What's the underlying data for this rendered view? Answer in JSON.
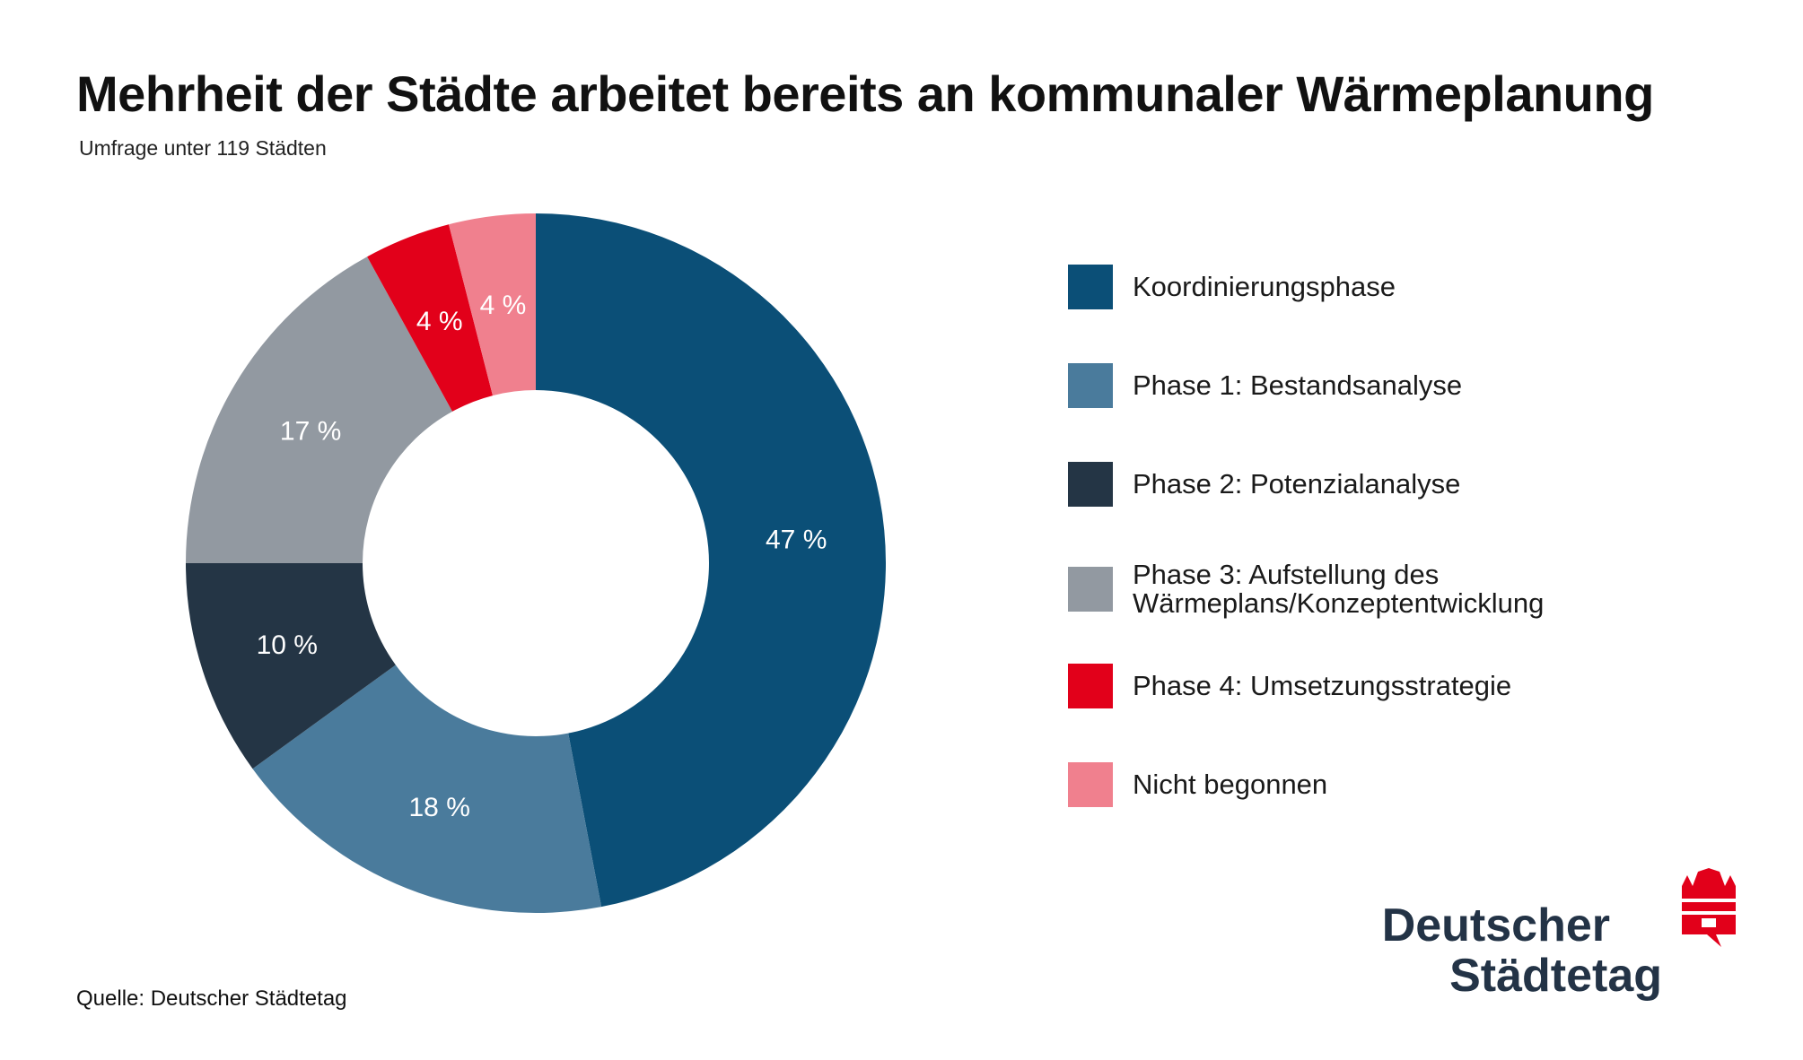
{
  "header": {
    "title": "Mehrheit der Städte arbeitet bereits an kommunaler Wärmeplanung",
    "subtitle": "Umfrage unter 119 Städten"
  },
  "footer": {
    "source": "Quelle: Deutscher Städtetag"
  },
  "logo": {
    "line1": "Deutscher",
    "line2": "Städtetag",
    "color_text": "#233346",
    "color_emblem": "#e2001a"
  },
  "chart_data": {
    "type": "pie",
    "donut": true,
    "title": "Mehrheit der Städte arbeitet bereits an kommunaler Wärmeplanung",
    "subtitle": "Umfrage unter 119 Städten",
    "legend_position": "right",
    "unit": "%",
    "slices": [
      {
        "label": "Koordinierungsphase",
        "value": 47,
        "data_label": "47 %",
        "color": "#0b4f77"
      },
      {
        "label": "Phase 1: Bestandsanalyse",
        "value": 18,
        "data_label": "18 %",
        "color": "#4a7b9c"
      },
      {
        "label": "Phase 2: Potenzialanalyse",
        "value": 10,
        "data_label": "10 %",
        "color": "#243545"
      },
      {
        "label": "Phase 3: Aufstellung des Wärmeplans/Konzeptentwicklung",
        "value": 17,
        "data_label": "17 %",
        "color": "#9299a1"
      },
      {
        "label": "Phase 4: Umsetzungsstrategie",
        "value": 4,
        "data_label": "4 %",
        "color": "#e2001a"
      },
      {
        "label": "Nicht begonnen",
        "value": 4,
        "data_label": "4 %",
        "color": "#f0808e"
      }
    ]
  }
}
